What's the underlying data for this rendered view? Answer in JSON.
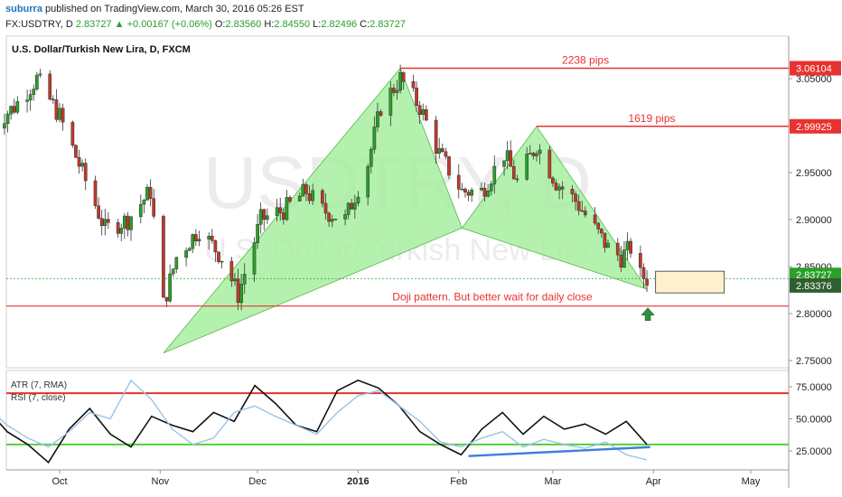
{
  "header": {
    "author": "suburra",
    "published_text": "published on TradingView.com, March 30, 2016 05:26 EST",
    "symbol_line": {
      "symbol": "FX:USDTRY, D",
      "last": "2.83727",
      "change": "▲ +0.00167 (+0.06%)",
      "open_label": "O:",
      "open": "2.83560",
      "high_label": "H:",
      "high": "2.84550",
      "low_label": "L:",
      "low": "2.82496",
      "close_label": "C:",
      "close": "2.83727"
    }
  },
  "colors": {
    "up_candle": "#2aa02a",
    "down_candle": "#c0392b",
    "pattern_fill": "#a8efa0",
    "red_line": "#e8322f",
    "atr_line": "#111111",
    "rsi_line": "#9cc3e6",
    "green_hline": "#4fd23b",
    "trend_line": "#3f7fd9",
    "box_fill": "#fdf0cc"
  },
  "chart_data": [
    {
      "type": "candlestick",
      "title": "U.S. Dollar/Turkish New Lira, D, FXCM",
      "watermark_symbol": "USDTRY, D",
      "watermark_name": "U.S. Dollar/Turkish New Lira",
      "ylim": [
        2.73,
        3.075
      ],
      "y_ticks": [
        "3.05000",
        "2.95000",
        "2.90000",
        "2.85000",
        "2.80000",
        "2.75000"
      ],
      "y_tick_values": [
        3.05,
        2.95,
        2.9,
        2.85,
        2.8,
        2.75
      ],
      "price_tags": [
        {
          "label": "3.06104",
          "value": 3.06104,
          "color": "#e8322f"
        },
        {
          "label": "2.99925",
          "value": 2.99925,
          "color": "#e8322f"
        },
        {
          "label": "2.83727",
          "value": 2.83727,
          "color": "#2aa02a"
        },
        {
          "label": "2.83376",
          "value": 2.83376,
          "color": "#2f5f2f"
        }
      ],
      "x_ticks": [
        "Oct",
        "Nov",
        "Dec",
        "2016",
        "Feb",
        "Mar",
        "Apr",
        "May"
      ],
      "annotations": [
        {
          "text": "2238 pips",
          "level": 3.06104
        },
        {
          "text": "1619 pips",
          "level": 2.99925
        },
        {
          "text": "Doji pattern. But better wait for daily close",
          "level": 2.808
        }
      ],
      "current_price": 2.83727,
      "support_level": 2.808,
      "pattern_points": [
        {
          "date": "2015-11-02",
          "price": 2.758
        },
        {
          "date": "2016-01-14",
          "price": 3.06104
        },
        {
          "date": "2016-02-02",
          "price": 2.891
        },
        {
          "date": "2016-02-25",
          "price": 2.99925
        },
        {
          "date": "2016-03-30",
          "price": 2.826
        }
      ],
      "close_path": [
        {
          "date": "2015-09-10",
          "close": 3.0
        },
        {
          "date": "2015-09-17",
          "close": 3.02
        },
        {
          "date": "2015-09-24",
          "close": 3.05
        },
        {
          "date": "2015-10-01",
          "close": 3.01
        },
        {
          "date": "2015-10-08",
          "close": 2.95
        },
        {
          "date": "2015-10-15",
          "close": 2.89
        },
        {
          "date": "2015-10-22",
          "close": 2.9
        },
        {
          "date": "2015-10-29",
          "close": 2.93
        },
        {
          "date": "2015-11-02",
          "close": 2.81
        },
        {
          "date": "2015-11-06",
          "close": 2.86
        },
        {
          "date": "2015-11-13",
          "close": 2.89
        },
        {
          "date": "2015-11-20",
          "close": 2.86
        },
        {
          "date": "2015-11-25",
          "close": 2.82
        },
        {
          "date": "2015-12-02",
          "close": 2.9
        },
        {
          "date": "2015-12-09",
          "close": 2.91
        },
        {
          "date": "2015-12-16",
          "close": 2.93
        },
        {
          "date": "2015-12-21",
          "close": 2.91
        },
        {
          "date": "2015-12-28",
          "close": 2.9
        },
        {
          "date": "2016-01-04",
          "close": 2.96
        },
        {
          "date": "2016-01-08",
          "close": 3.02
        },
        {
          "date": "2016-01-14",
          "close": 3.05
        },
        {
          "date": "2016-01-20",
          "close": 3.02
        },
        {
          "date": "2016-01-26",
          "close": 2.97
        },
        {
          "date": "2016-02-02",
          "close": 2.93
        },
        {
          "date": "2016-02-08",
          "close": 2.93
        },
        {
          "date": "2016-02-15",
          "close": 2.97
        },
        {
          "date": "2016-02-19",
          "close": 2.94
        },
        {
          "date": "2016-02-25",
          "close": 2.98
        },
        {
          "date": "2016-03-02",
          "close": 2.94
        },
        {
          "date": "2016-03-08",
          "close": 2.92
        },
        {
          "date": "2016-03-14",
          "close": 2.89
        },
        {
          "date": "2016-03-18",
          "close": 2.87
        },
        {
          "date": "2016-03-22",
          "close": 2.86
        },
        {
          "date": "2016-03-25",
          "close": 2.87
        },
        {
          "date": "2016-03-28",
          "close": 2.84
        },
        {
          "date": "2016-03-30",
          "close": 2.83727
        }
      ]
    },
    {
      "type": "line",
      "legend": [
        "ATR (7, RMA)",
        "RSI (7, close)"
      ],
      "ylim": [
        10,
        82
      ],
      "y_ticks": [
        "75.0000",
        "50.0000",
        "25.0000"
      ],
      "y_tick_values": [
        75,
        50,
        25
      ],
      "hlines": [
        {
          "value": 70,
          "color": "#e8322f"
        },
        {
          "value": 30,
          "color": "#4fd23b"
        }
      ],
      "series": [
        {
          "name": "ATR (7, RMA)",
          "values": [
            52,
            58,
            40,
            30,
            16,
            42,
            58,
            38,
            28,
            52,
            45,
            40,
            55,
            48,
            76,
            62,
            45,
            40,
            72,
            80,
            74,
            60,
            40,
            30,
            22,
            42,
            55,
            38,
            52,
            42,
            46,
            38,
            48,
            30
          ]
        },
        {
          "name": "RSI (7, close)",
          "values": [
            55,
            60,
            45,
            35,
            28,
            40,
            55,
            50,
            80,
            65,
            42,
            30,
            35,
            55,
            60,
            52,
            45,
            38,
            55,
            68,
            72,
            60,
            48,
            32,
            28,
            35,
            40,
            28,
            34,
            30,
            27,
            32,
            22,
            18
          ]
        }
      ],
      "trend_line": [
        {
          "date": "2016-02-04",
          "value": 21
        },
        {
          "date": "2016-03-31",
          "value": 28
        }
      ]
    }
  ]
}
